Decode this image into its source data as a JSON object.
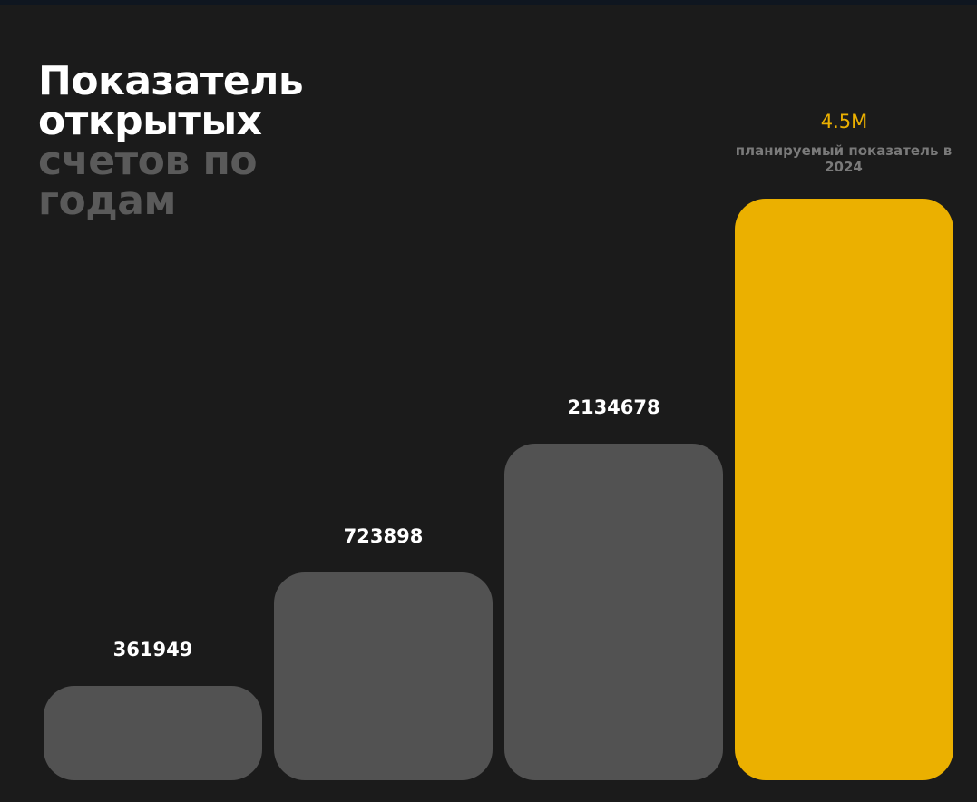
{
  "header": {
    "title_line1": "Показатель открытых",
    "title_line2": "счетов по годам"
  },
  "bars": [
    {
      "label": "361949"
    },
    {
      "label": "723898"
    },
    {
      "label": "2134678"
    },
    {
      "label": "4.5M",
      "caption": "планируемый показатель в 2024"
    }
  ]
}
